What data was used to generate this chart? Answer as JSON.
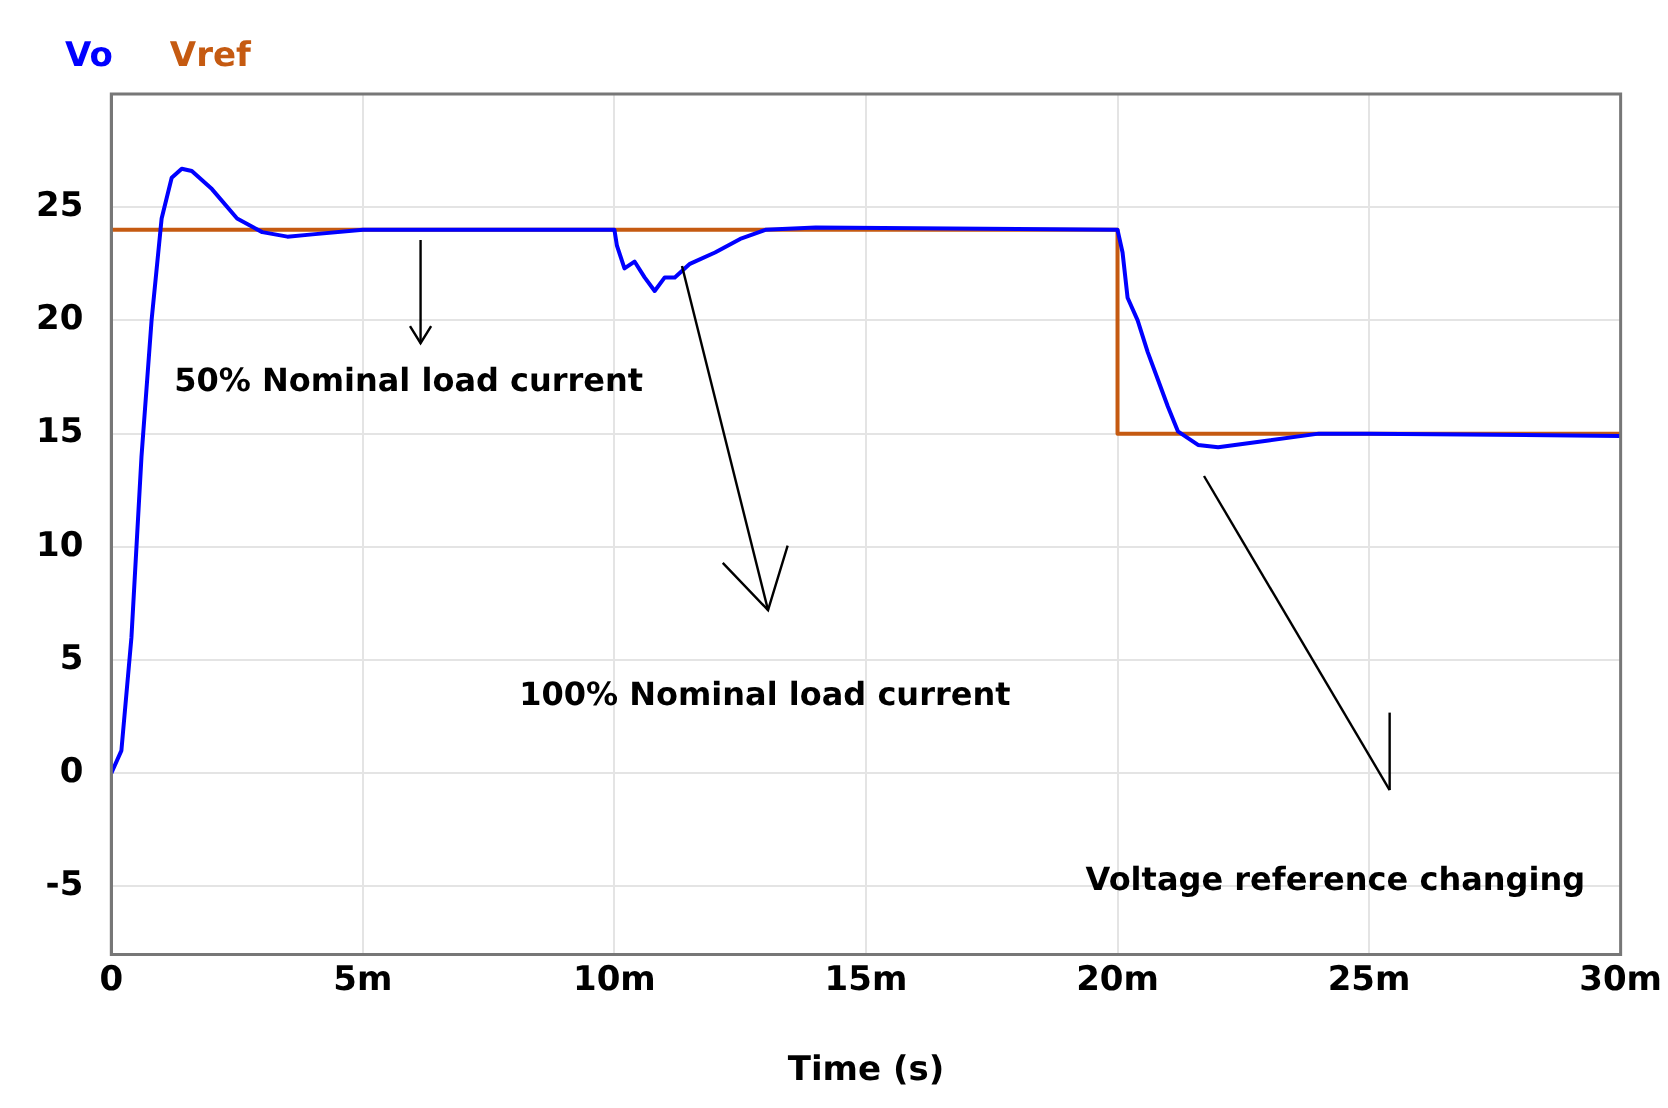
{
  "chart_data": {
    "type": "line",
    "xlabel": "Time (s)",
    "xlim": [
      0,
      30
    ],
    "xticks": [
      0,
      {
        "value": 5,
        "label": "5m"
      },
      {
        "value": 10,
        "label": "10m"
      },
      {
        "value": 15,
        "label": "15m"
      },
      {
        "value": 20,
        "label": "20m"
      },
      {
        "value": 25,
        "label": "25m"
      },
      {
        "value": 30,
        "label": "30m"
      }
    ],
    "ylim": [
      -8,
      30
    ],
    "yticks": [
      -5,
      0,
      5,
      10,
      15,
      20,
      25
    ],
    "grid": true,
    "legend": "top left",
    "marker": "none",
    "line_style": "solid",
    "series": [
      {
        "name": "Vo",
        "color": "#0000ff",
        "x": [
          0,
          0.2,
          0.4,
          0.6,
          0.8,
          1,
          1.2,
          1.4,
          1.6,
          2,
          2.5,
          3,
          3.5,
          4,
          5,
          10,
          10.05,
          10.2,
          10.4,
          10.6,
          10.8,
          11,
          11.2,
          11.5,
          12,
          12.5,
          13,
          14,
          20,
          20.1,
          20.2,
          20.4,
          20.6,
          20.8,
          21,
          21.2,
          21.6,
          22,
          23,
          24,
          25,
          30
        ],
        "values": [
          0,
          1,
          6,
          14,
          20,
          24.5,
          26.3,
          26.7,
          26.6,
          25.8,
          24.5,
          23.9,
          23.7,
          23.8,
          24,
          24,
          23.3,
          22.3,
          22.6,
          21.9,
          21.3,
          21.9,
          21.9,
          22.5,
          23,
          23.6,
          24,
          24.1,
          24,
          23,
          21,
          20,
          18.6,
          17.4,
          16.2,
          15.1,
          14.5,
          14.4,
          14.7,
          15,
          15,
          14.9
        ]
      },
      {
        "name": "Vref",
        "color": "#c55a11",
        "x": [
          0,
          20,
          20,
          30
        ],
        "values": [
          24,
          24,
          15,
          15
        ]
      }
    ],
    "annotations": [
      "50% Nominal load current",
      "100% Nominal load current",
      "Voltage reference changing"
    ]
  }
}
